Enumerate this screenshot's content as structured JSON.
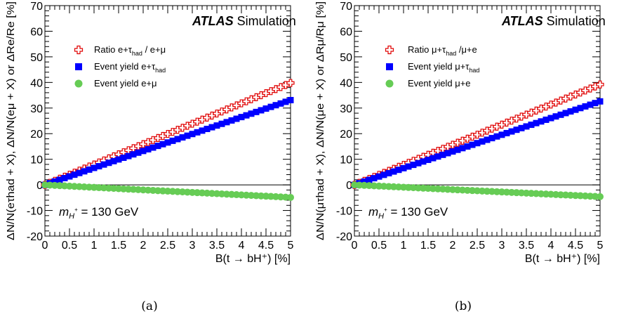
{
  "chart_data": [
    {
      "type": "scatter",
      "caption": "(a)",
      "xlabel": "B(t → bH⁺) [%]",
      "ylabel": "ΔN/N(eτhad + X), ΔN/N(eμ + X) or ΔRe/Re [%]",
      "xlim": [
        0,
        5
      ],
      "ylim": [
        -20,
        70
      ],
      "xticks": [
        "0",
        "0.5",
        "1",
        "1.5",
        "2",
        "2.5",
        "3",
        "3.5",
        "4",
        "4.5",
        "5"
      ],
      "yticks": [
        "-20",
        "-10",
        "0",
        "10",
        "20",
        "30",
        "40",
        "50",
        "60",
        "70"
      ],
      "atlas_label": "ATLAS",
      "atlas_suffix": "Simulation",
      "mass_label": "m_H+ = 130 GeV",
      "x": [
        0,
        5
      ],
      "series": [
        {
          "name": "Ratio e+τhad / e+μ",
          "marker": "open-cross",
          "color": "#e00000",
          "y": [
            0,
            39.8
          ]
        },
        {
          "name": "Event yield e+τhad",
          "marker": "square",
          "color": "#0000ff",
          "y": [
            0,
            33.1
          ]
        },
        {
          "name": "Event yield e+μ",
          "marker": "circle",
          "color": "#66cc55",
          "y": [
            0,
            -4.9
          ]
        }
      ]
    },
    {
      "type": "scatter",
      "caption": "(b)",
      "xlabel": "B(t → bH⁺) [%]",
      "ylabel": "ΔN/N(μτhad + X), ΔN/N(μe + X) or ΔRμ/Rμ [%]",
      "xlim": [
        0,
        5
      ],
      "ylim": [
        -20,
        70
      ],
      "xticks": [
        "0",
        "0.5",
        "1",
        "1.5",
        "2",
        "2.5",
        "3",
        "3.5",
        "4",
        "4.5",
        "5"
      ],
      "yticks": [
        "-20",
        "-10",
        "0",
        "10",
        "20",
        "30",
        "40",
        "50",
        "60",
        "70"
      ],
      "atlas_label": "ATLAS",
      "atlas_suffix": "Simulation",
      "mass_label": "m_H+ = 130 GeV",
      "x": [
        0,
        5
      ],
      "series": [
        {
          "name": "Ratio μ+τhad /μ+e",
          "marker": "open-cross",
          "color": "#e00000",
          "y": [
            0,
            39.2
          ]
        },
        {
          "name": "Event yield μ+τhad",
          "marker": "square",
          "color": "#0000ff",
          "y": [
            0,
            32.6
          ]
        },
        {
          "name": "Event yield μ+e",
          "marker": "circle",
          "color": "#66cc55",
          "y": [
            0,
            -4.6
          ]
        }
      ]
    }
  ]
}
